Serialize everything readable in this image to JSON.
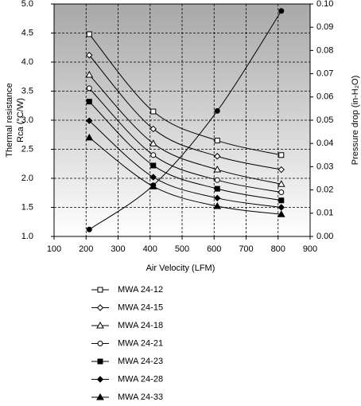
{
  "chart_data": {
    "type": "line",
    "xlabel": "Air Velocity (LFM)",
    "ylabel": [
      "Thermal resistance",
      "Rca (°C/W)"
    ],
    "y2label": "Pressure drop (in-H₂O)",
    "x": [
      210,
      410,
      610,
      810
    ],
    "xlim": [
      100,
      900
    ],
    "xticks": [
      100,
      200,
      300,
      400,
      500,
      600,
      700,
      800,
      900
    ],
    "ylim": [
      1,
      5
    ],
    "yticks": [
      {
        "value": 1,
        "label": "1.0"
      },
      1.5,
      {
        "value": 2,
        "label": "2.0"
      },
      2.5,
      {
        "value": 3,
        "label": "3.0"
      },
      3.5,
      {
        "value": 4,
        "label": "4.0"
      },
      4.5,
      {
        "value": 5,
        "label": "5.0"
      }
    ],
    "y2lim": [
      0,
      0.1
    ],
    "y2ticks": [
      {
        "value": 0,
        "label": "0.00"
      },
      0.01,
      0.02,
      0.03,
      0.04,
      0.05,
      0.06,
      0.07,
      0.08,
      0.09,
      {
        "value": 0.1,
        "label": "0.10"
      }
    ],
    "grid": true,
    "series": [
      {
        "name": "MWA 24-12",
        "color": "#000000",
        "marker": "square",
        "filled": false,
        "values": [
          4.48,
          3.15,
          2.65,
          2.4
        ]
      },
      {
        "name": "MWA 24-15",
        "color": "#000000",
        "marker": "diamond",
        "filled": false,
        "values": [
          4.12,
          2.85,
          2.38,
          2.15
        ]
      },
      {
        "name": "MWA 24-18",
        "color": "#000000",
        "marker": "triangle",
        "filled": false,
        "values": [
          3.78,
          2.6,
          2.15,
          1.9
        ]
      },
      {
        "name": "MWA 24-21",
        "color": "#000000",
        "marker": "circle",
        "filled": false,
        "values": [
          3.55,
          2.4,
          1.97,
          1.76
        ]
      },
      {
        "name": "MWA 24-23",
        "color": "#000000",
        "marker": "square",
        "filled": true,
        "values": [
          3.32,
          2.22,
          1.82,
          1.62
        ]
      },
      {
        "name": "MWA 24-28",
        "color": "#000000",
        "marker": "diamond",
        "filled": true,
        "values": [
          2.99,
          2.02,
          1.66,
          1.5
        ]
      },
      {
        "name": "MWA 24-33",
        "color": "#000000",
        "marker": "triangle",
        "filled": true,
        "values": [
          2.7,
          1.86,
          1.52,
          1.38
        ]
      },
      {
        "color": "#000000",
        "marker": "circle",
        "filled": true,
        "axis": "y2",
        "values": [
          0.003,
          0.022,
          0.054,
          0.097
        ]
      }
    ]
  }
}
